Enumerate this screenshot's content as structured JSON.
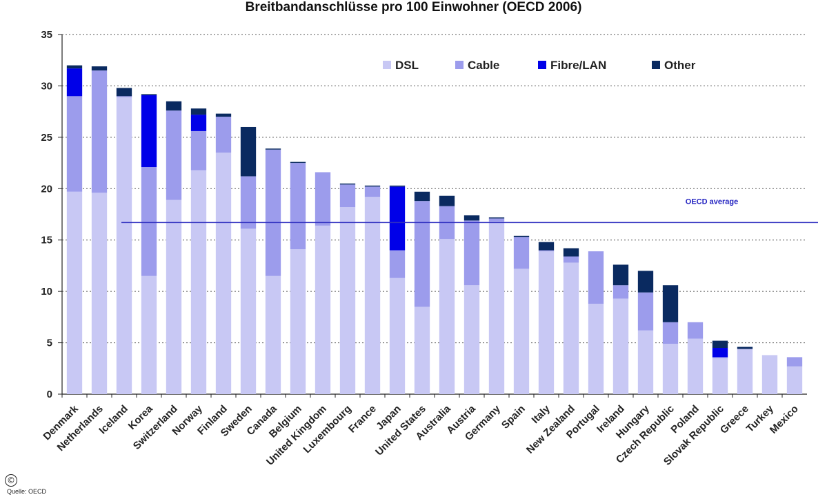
{
  "chart_data": {
    "type": "bar",
    "stacked": true,
    "title": "Breitbandanschlüsse pro 100 Einwohner (OECD 2006)",
    "ylim": [
      0,
      35
    ],
    "yticks": [
      0,
      5,
      10,
      15,
      20,
      25,
      30,
      35
    ],
    "grid": true,
    "legend_position": "top-right",
    "categories": [
      "Denmark",
      "Netherlands",
      "Iceland",
      "Korea",
      "Switzerland",
      "Norway",
      "Finland",
      "Sweden",
      "Canada",
      "Belgium",
      "United Kingdom",
      "Luxembourg",
      "France",
      "Japan",
      "United States",
      "Australia",
      "Austria",
      "Germany",
      "Spain",
      "Italy",
      "New Zealand",
      "Portugal",
      "Ireland",
      "Hungary",
      "Czech Republic",
      "Poland",
      "Slovak Republic",
      "Greece",
      "Turkey",
      "Mexico"
    ],
    "series": [
      {
        "name": "DSL",
        "color": "#c8c8f4",
        "values": [
          19.7,
          19.6,
          28.9,
          11.5,
          18.9,
          21.8,
          23.5,
          16.1,
          11.5,
          14.1,
          16.4,
          18.2,
          19.2,
          11.3,
          8.5,
          15.1,
          10.6,
          16.8,
          12.2,
          13.9,
          12.8,
          8.8,
          9.3,
          6.2,
          4.9,
          5.4,
          3.5,
          4.4,
          3.8,
          2.7
        ]
      },
      {
        "name": "Cable",
        "color": "#9c9cec",
        "values": [
          9.3,
          11.9,
          0.1,
          10.6,
          8.7,
          3.8,
          3.5,
          5.1,
          12.3,
          8.4,
          5.2,
          2.2,
          1.0,
          2.7,
          10.3,
          3.2,
          6.3,
          0.3,
          3.1,
          0.1,
          0.6,
          5.1,
          1.3,
          3.7,
          2.1,
          1.6,
          0.1,
          0.0,
          0.0,
          0.9
        ]
      },
      {
        "name": "Fibre/LAN",
        "color": "#0000e8",
        "values": [
          2.7,
          0.0,
          0.0,
          7.0,
          0.0,
          1.6,
          0.0,
          0.0,
          0.0,
          0.0,
          0.0,
          0.0,
          0.0,
          6.2,
          0.0,
          0.0,
          0.0,
          0.0,
          0.0,
          0.0,
          0.0,
          0.0,
          0.0,
          0.0,
          0.0,
          0.0,
          0.9,
          0.0,
          0.0,
          0.0
        ]
      },
      {
        "name": "Other",
        "color": "#0a2a60",
        "values": [
          0.3,
          0.4,
          0.8,
          0.1,
          0.9,
          0.6,
          0.3,
          4.8,
          0.1,
          0.1,
          0.0,
          0.1,
          0.1,
          0.1,
          0.9,
          1.0,
          0.5,
          0.1,
          0.1,
          0.8,
          0.8,
          0.0,
          2.0,
          2.1,
          3.6,
          0.0,
          0.7,
          0.2,
          0.0,
          0.0
        ]
      }
    ],
    "reference_line": {
      "label": "OECD average",
      "value": 16.7
    }
  },
  "footer": {
    "copyright_symbol": "©",
    "source": "Quelle: OECD"
  }
}
